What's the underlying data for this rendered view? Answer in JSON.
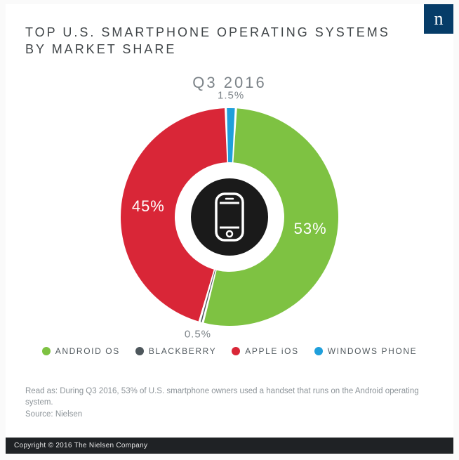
{
  "brand": {
    "logo_letter": "n",
    "logo_bg": "#063c68"
  },
  "title_line1": "TOP U.S. SMARTPHONE OPERATING SYSTEMS",
  "title_line2": "BY MARKET SHARE",
  "subtitle": "Q3 2016",
  "chart": {
    "type": "donut",
    "background_color": "#ffffff",
    "outer_radius": 155,
    "inner_radius": 78,
    "center_icon_circle_color": "#1a1a1a",
    "gap_color": "#ffffff",
    "gap_width_deg": 1.2,
    "slices": [
      {
        "name": "Windows Phone",
        "value": 1.5,
        "color": "#1f9fdb",
        "label": "1.5%",
        "label_outside": true
      },
      {
        "name": "Android OS",
        "value": 53,
        "color": "#7ec242",
        "label": "53%",
        "label_outside": false
      },
      {
        "name": "BlackBerry",
        "value": 0.5,
        "color": "#4e575c",
        "label": "0.5%",
        "label_outside": true
      },
      {
        "name": "Apple iOS",
        "value": 45,
        "color": "#d92637",
        "label": "45%",
        "label_outside": false
      }
    ],
    "start_angle_deg": -92
  },
  "legend": [
    {
      "label": "ANDROID OS",
      "color": "#7ec242"
    },
    {
      "label": "BLACKBERRY",
      "color": "#4e575c"
    },
    {
      "label": "APPLE iOS",
      "color": "#d92637"
    },
    {
      "label": "WINDOWS PHONE",
      "color": "#1f9fdb"
    }
  ],
  "footnote_line1": "Read as: During Q3 2016, 53% of U.S. smartphone owners used a handset that runs on the Android operating system.",
  "footnote_line2": "Source: Nielsen",
  "copyright": "Copyright © 2016 The Nielsen Company"
}
